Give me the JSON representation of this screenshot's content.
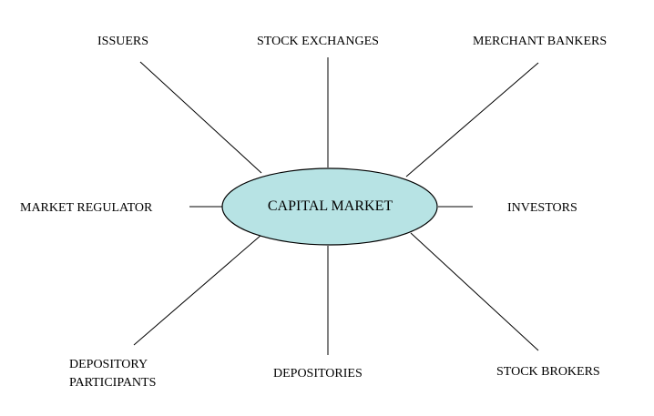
{
  "center": {
    "label": "CAPITAL MARKET",
    "fill_color": "#b7e3e4"
  },
  "nodes": {
    "issuers": "ISSUERS",
    "stock_exchanges": "STOCK EXCHANGES",
    "merchant_bankers": "MERCHANT BANKERS",
    "market_regulator": "MARKET REGULATOR",
    "investors": "INVESTORS",
    "depository_participants_line1": "DEPOSITORY",
    "depository_participants_line2": "PARTICIPANTS",
    "depositories": "DEPOSITORIES",
    "stock_brokers": "STOCK BROKERS"
  },
  "colors": {
    "line": "#000000",
    "ellipse_stroke": "#000000"
  }
}
